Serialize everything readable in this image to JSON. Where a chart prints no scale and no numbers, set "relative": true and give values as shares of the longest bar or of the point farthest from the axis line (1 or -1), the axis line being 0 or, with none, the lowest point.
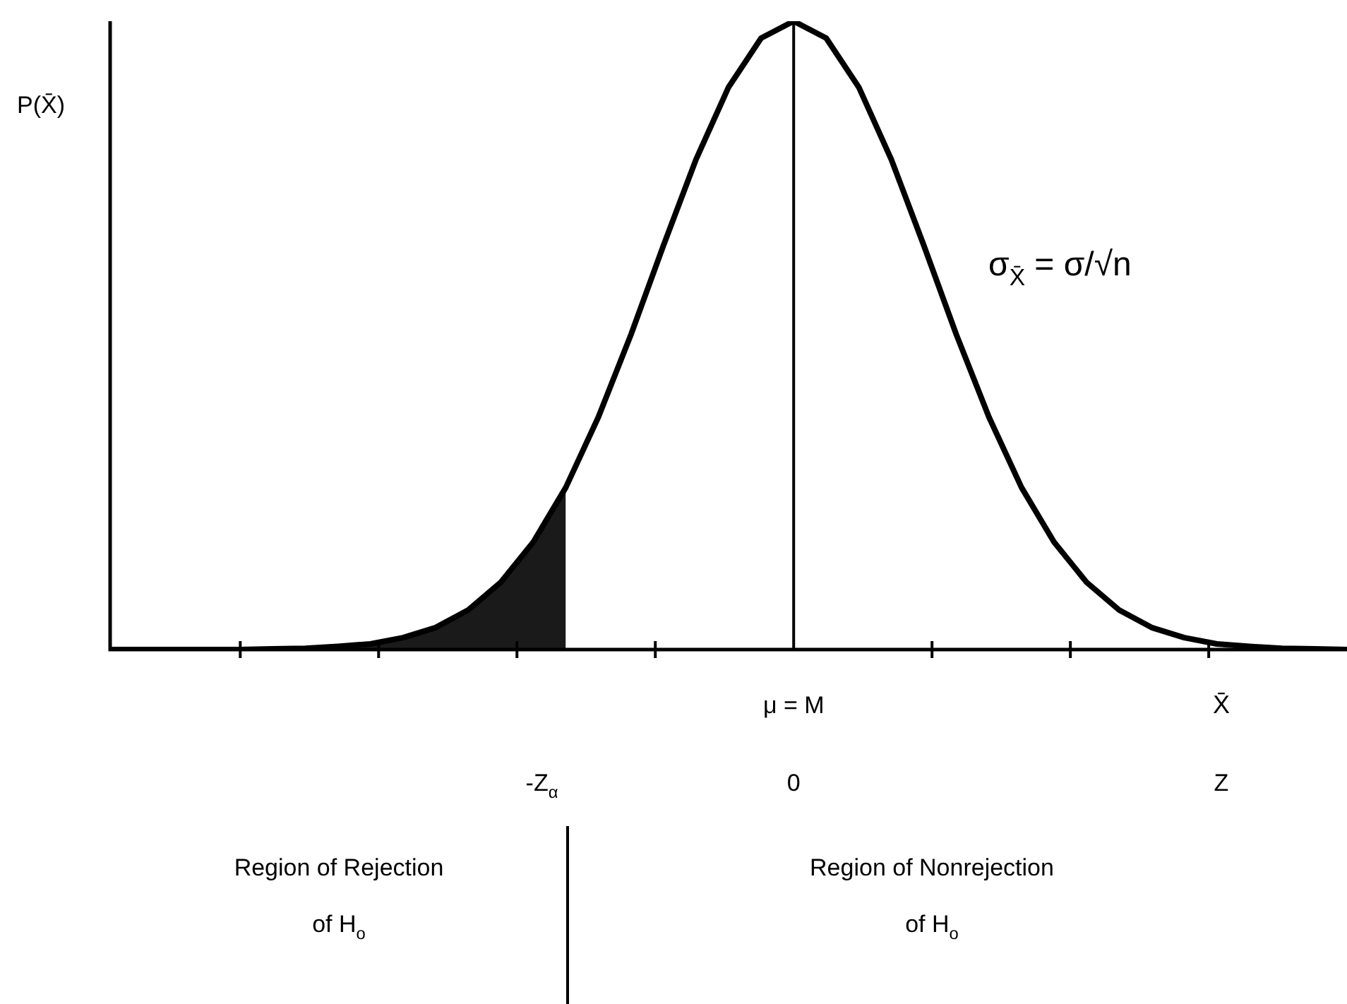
{
  "chart_data": {
    "type": "line",
    "relative": true,
    "ylabel": "P(X̄)",
    "xlabel": "X̄",
    "categories": [
      null,
      null,
      null,
      null,
      null,
      null,
      null,
      null,
      null,
      null,
      null,
      null,
      null,
      null,
      null,
      null,
      null,
      null,
      null,
      null,
      null,
      null,
      null,
      null,
      null,
      null,
      null,
      null,
      null,
      null,
      null,
      null,
      null,
      null,
      null,
      null,
      null,
      null,
      null
    ],
    "series": [
      {
        "type": "line",
        "color": "#000000",
        "values": [
          0,
          0,
          0,
          0,
          0,
          0.001,
          0.002,
          0.005,
          0.009,
          0.019,
          0.035,
          0.063,
          0.107,
          0.171,
          0.258,
          0.37,
          0.501,
          0.643,
          0.78,
          0.895,
          0.973,
          1,
          0.973,
          0.895,
          0.78,
          0.643,
          0.501,
          0.37,
          0.258,
          0.171,
          0.107,
          0.063,
          0.035,
          0.019,
          0.009,
          0.005,
          0.002,
          0.001,
          0
        ]
      },
      {
        "type": "area",
        "color": "#1a1a1a",
        "values": [
          0,
          0,
          0,
          0,
          0,
          0.001,
          0.002,
          0.005,
          0.009,
          0.019,
          0.035,
          0.063,
          0.107,
          0.171,
          0.258,
          null,
          null,
          null,
          null,
          null,
          null,
          null,
          null,
          null,
          null,
          null,
          null,
          null,
          null,
          null,
          null,
          null,
          null,
          null,
          null,
          null,
          null,
          null,
          null
        ]
      }
    ],
    "ref_lines": [
      {
        "axis": "x",
        "label": "μ = M",
        "color": "#000000"
      }
    ],
    "annotations": [
      "σ$_{X̄}$ = σ/√n",
      "0",
      "-Z$_{α}$",
      "Z",
      "Region of Rejection of H$_{o}$",
      "Region of Nonrejection of H$_{o}$"
    ]
  }
}
